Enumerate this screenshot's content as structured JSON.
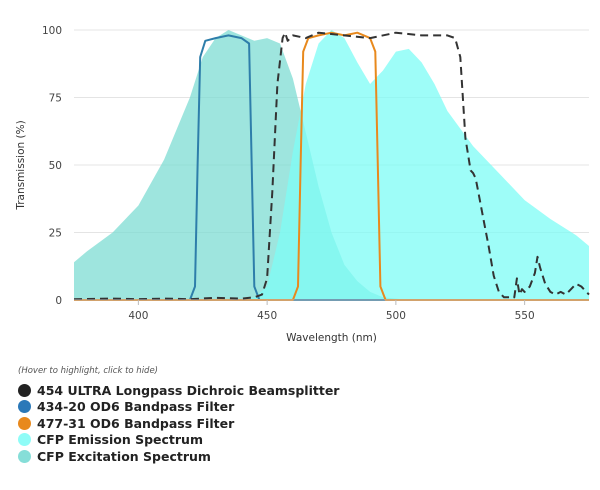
{
  "chart_data": {
    "type": "line",
    "title": "",
    "xlabel": "Wavelength (nm)",
    "ylabel": "Transmission (%)",
    "xlim": [
      375,
      575
    ],
    "ylim": [
      0,
      100
    ],
    "xticks": [
      400,
      450,
      500,
      550
    ],
    "yticks": [
      0,
      25,
      50,
      75,
      100
    ],
    "grid": "horizontal",
    "legend_position": "bottom",
    "hint": "(Hover to highlight, click to hide)",
    "series": [
      {
        "name": "454 ULTRA Longpass Dichroic Beamsplitter",
        "color": "#333333",
        "style": "dashed-line",
        "x": [
          375,
          390,
          400,
          410,
          420,
          430,
          440,
          445,
          448,
          450,
          452,
          454,
          456,
          457,
          458,
          460,
          465,
          470,
          480,
          490,
          500,
          510,
          520,
          523,
          525,
          527,
          529,
          530,
          531,
          532,
          534,
          536,
          538,
          540,
          542,
          544,
          545,
          546,
          547,
          548,
          549,
          550,
          552,
          554,
          555,
          556,
          558,
          560,
          562,
          564,
          566,
          568,
          570,
          572,
          575
        ],
        "y": [
          0.3,
          0.5,
          0.3,
          0.5,
          0.3,
          0.8,
          0.5,
          1,
          2,
          8,
          40,
          80,
          97,
          99,
          96,
          98,
          97,
          99,
          98,
          97,
          99,
          98,
          98,
          97,
          90,
          60,
          48,
          47,
          45,
          40,
          30,
          20,
          9,
          3,
          1,
          1,
          0.5,
          1,
          8,
          2,
          4,
          3,
          5,
          10,
          16,
          12,
          6,
          3,
          2,
          3,
          2,
          4,
          6,
          5,
          2
        ]
      },
      {
        "name": "434-20 OD6 Bandpass Filter",
        "color": "#2e7eaa",
        "style": "line",
        "x": [
          375,
          420,
          422,
          423,
          424,
          426,
          430,
          435,
          440,
          443,
          444,
          445,
          447,
          575
        ],
        "y": [
          0,
          0,
          5,
          50,
          90,
          96,
          97,
          98,
          97,
          95,
          50,
          5,
          0,
          0
        ]
      },
      {
        "name": "477-31 OD6 Bandpass Filter",
        "color": "#e8891d",
        "style": "line",
        "x": [
          375,
          460,
          462,
          463,
          464,
          466,
          470,
          475,
          480,
          485,
          490,
          492,
          493,
          494,
          496,
          575
        ],
        "y": [
          0,
          0,
          5,
          50,
          92,
          97,
          98,
          99,
          98,
          99,
          97,
          92,
          50,
          5,
          0,
          0
        ]
      },
      {
        "name": "CFP Emission Spectrum",
        "color": "#7efcf5",
        "style": "area",
        "x": [
          440,
          445,
          450,
          455,
          460,
          465,
          470,
          475,
          480,
          485,
          490,
          495,
          500,
          505,
          510,
          515,
          520,
          530,
          540,
          550,
          560,
          570,
          575
        ],
        "y": [
          0,
          1,
          5,
          25,
          55,
          80,
          95,
          100,
          97,
          88,
          80,
          85,
          92,
          93,
          88,
          80,
          70,
          57,
          47,
          37,
          30,
          24,
          20
        ]
      },
      {
        "name": "CFP Excitation Spectrum",
        "color": "#7ddcd3",
        "style": "area",
        "x": [
          375,
          380,
          390,
          400,
          410,
          420,
          425,
          430,
          435,
          440,
          445,
          450,
          455,
          460,
          465,
          470,
          475,
          480,
          485,
          490,
          495,
          500,
          505
        ],
        "y": [
          14,
          18,
          25,
          35,
          52,
          75,
          90,
          97,
          100,
          98,
          96,
          97,
          95,
          82,
          62,
          42,
          25,
          13,
          7,
          3,
          1,
          0.5,
          0
        ]
      }
    ]
  }
}
